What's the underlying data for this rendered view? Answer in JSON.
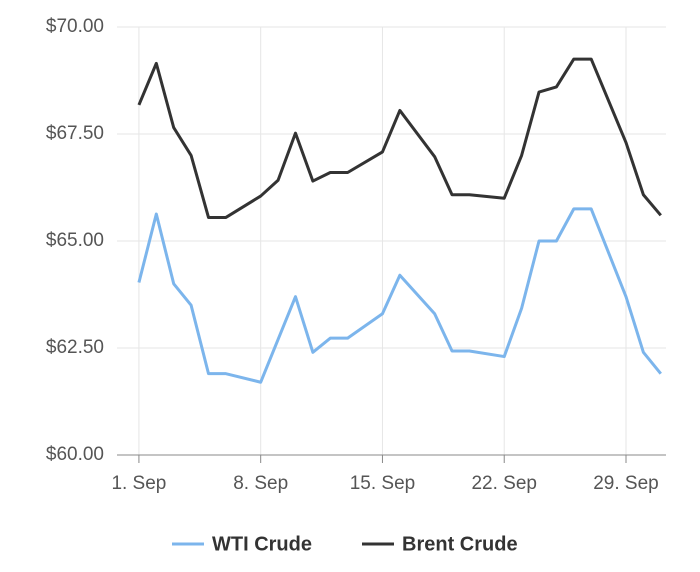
{
  "chart_data": {
    "type": "line",
    "x": [
      1,
      2,
      3,
      4,
      5,
      6,
      8,
      9,
      10,
      11,
      12,
      13,
      15,
      16,
      18,
      19,
      20,
      22,
      23,
      24,
      25,
      26,
      27,
      29,
      30,
      31
    ],
    "series": [
      {
        "name": "WTI Crude",
        "color": "#7cb5ec",
        "values": [
          64.03,
          65.63,
          64.0,
          63.5,
          61.9,
          61.9,
          61.7,
          62.7,
          63.7,
          62.4,
          62.73,
          62.73,
          63.3,
          64.2,
          63.3,
          62.43,
          62.43,
          62.3,
          63.43,
          65.0,
          65.0,
          65.75,
          65.75,
          63.7,
          62.4,
          61.9
        ]
      },
      {
        "name": "Brent Crude",
        "color": "#333333",
        "values": [
          68.18,
          69.15,
          67.65,
          67.0,
          65.55,
          65.55,
          66.05,
          66.42,
          67.52,
          66.4,
          66.6,
          66.6,
          67.08,
          68.05,
          66.97,
          66.08,
          66.08,
          66.0,
          67.0,
          68.48,
          68.6,
          69.25,
          69.25,
          67.3,
          66.08,
          65.6
        ]
      }
    ],
    "xlim": [
      -0.26,
      31.3
    ],
    "xticks": [
      {
        "value": 1,
        "label": "1. Sep"
      },
      {
        "value": 8,
        "label": "8. Sep"
      },
      {
        "value": 15,
        "label": "15. Sep"
      },
      {
        "value": 22,
        "label": "22. Sep"
      },
      {
        "value": 29,
        "label": "29. Sep"
      }
    ],
    "ylim": [
      60,
      70
    ],
    "yticks": [
      {
        "value": 60,
        "label": "$60.00"
      },
      {
        "value": 62.5,
        "label": "$62.50"
      },
      {
        "value": 65,
        "label": "$65.00"
      },
      {
        "value": 67.5,
        "label": "$67.50"
      },
      {
        "value": 70,
        "label": "$70.00"
      }
    ],
    "grid": true
  }
}
